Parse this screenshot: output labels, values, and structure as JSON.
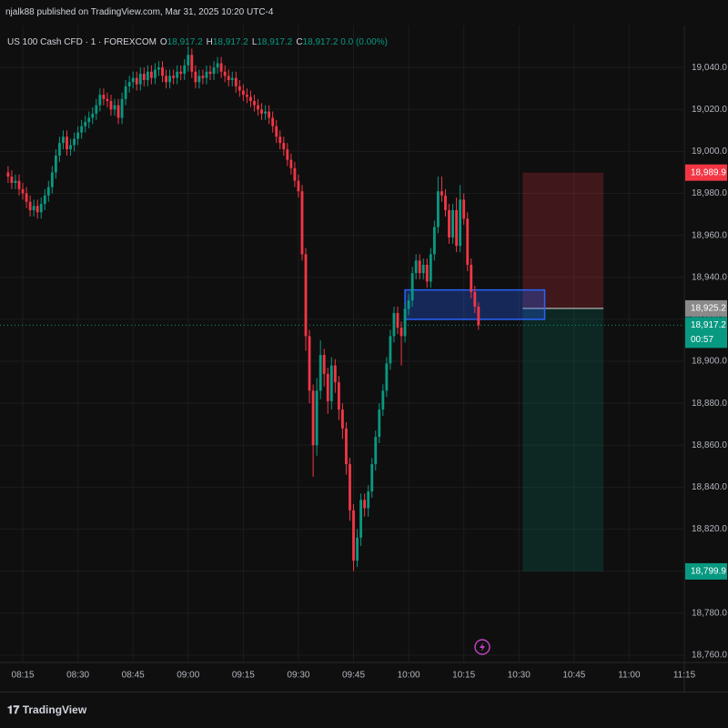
{
  "header": {
    "text": "njalk88 published on TradingView.com, Mar 31, 2025 10:20 UTC-4"
  },
  "footer": {
    "brand": "TradingView"
  },
  "chart_data": {
    "type": "candlestick",
    "symbol": "US 100 Cash CFD · 1 · FOREXCOM",
    "ohlc_legend": [
      {
        "key": "O",
        "value": "18,917.2"
      },
      {
        "key": "H",
        "value": "18,917.2"
      },
      {
        "key": "L",
        "value": "18,917.2"
      },
      {
        "key": "C",
        "value": "18,917.2"
      }
    ],
    "change": "0.0 (0.00%)",
    "up_color": "#089981",
    "down_color": "#f23645",
    "x": [
      491,
      492,
      493,
      494,
      495,
      496,
      497,
      498,
      499,
      500,
      501,
      502,
      503,
      504,
      505,
      506,
      507,
      508,
      509,
      510,
      511,
      512,
      513,
      514,
      515,
      516,
      517,
      518,
      519,
      520,
      521,
      522,
      523,
      524,
      525,
      526,
      527,
      528,
      529,
      530,
      531,
      532,
      533,
      534,
      535,
      536,
      537,
      538,
      539,
      540,
      541,
      542,
      543,
      544,
      545,
      546,
      547,
      548,
      549,
      550,
      551,
      552,
      553,
      554,
      555,
      556,
      557,
      558,
      559,
      560,
      561,
      562,
      563,
      564,
      565,
      566,
      567,
      568,
      569,
      570,
      571,
      572,
      573,
      574,
      575,
      576,
      577,
      578,
      579,
      580,
      581,
      582,
      583,
      584,
      585,
      586,
      587,
      588,
      589,
      590,
      591,
      592,
      593,
      594,
      595,
      596,
      597,
      598,
      599,
      600,
      601,
      602,
      603,
      604,
      605,
      606,
      607,
      608,
      609,
      610,
      611,
      612,
      613,
      614,
      615,
      616,
      617,
      618,
      619
    ],
    "open": [
      18990,
      18988,
      18985,
      18986,
      18982,
      18980,
      18976,
      18972,
      18974,
      18971,
      18975,
      18979,
      18983,
      18990,
      18998,
      19004,
      19007,
      19001,
      19003,
      19006,
      19009,
      19012,
      19014,
      19016,
      19018,
      19022,
      19027,
      19025,
      19024,
      19020,
      19022,
      19016,
      19025,
      19031,
      19033,
      19035,
      19032,
      19037,
      19034,
      19038,
      19035,
      19039,
      19040,
      19036,
      19033,
      19036,
      19035,
      19038,
      19037,
      19041,
      19046,
      19038,
      19033,
      19036,
      19035,
      19038,
      19037,
      19040,
      19042,
      19038,
      19036,
      19034,
      19035,
      19031,
      19029,
      19027,
      19026,
      19024,
      19022,
      19020,
      19018,
      19019,
      19016,
      19012,
      19007,
      19004,
      19001,
      18996,
      18992,
      18986,
      18981,
      18951,
      18912,
      18886,
      18860,
      18886,
      18903,
      18894,
      18881,
      18898,
      18890,
      18877,
      18868,
      18851,
      18829,
      18805,
      18816,
      18834,
      18830,
      18838,
      18851,
      18864,
      18877,
      18886,
      18899,
      18912,
      18923,
      18916,
      18912,
      18925,
      18929,
      18942,
      18948,
      18942,
      18946,
      18938,
      18951,
      18964,
      18981,
      18979,
      18972,
      18959,
      18972,
      18955,
      18977,
      18968,
      18946,
      18933,
      18926
    ],
    "high": [
      18993,
      18991,
      18989,
      18989,
      18985,
      18983,
      18979,
      18977,
      18977,
      18978,
      18982,
      18986,
      18993,
      19001,
      19007,
      19010,
      19010,
      19006,
      19009,
      19012,
      19015,
      19017,
      19019,
      19021,
      19025,
      19030,
      19030,
      19028,
      19027,
      19025,
      19025,
      19028,
      19034,
      19036,
      19038,
      19038,
      19040,
      19040,
      19041,
      19041,
      19042,
      19043,
      19043,
      19039,
      19039,
      19039,
      19041,
      19041,
      19044,
      19050,
      19049,
      19041,
      19039,
      19039,
      19041,
      19041,
      19043,
      19045,
      19045,
      19041,
      19039,
      19038,
      19038,
      19034,
      19032,
      19030,
      19029,
      19027,
      19025,
      19023,
      19022,
      19022,
      19019,
      19015,
      19010,
      19007,
      19004,
      18999,
      18995,
      18989,
      18984,
      18954,
      18915,
      18889,
      18892,
      18910,
      18906,
      18897,
      18902,
      18901,
      18893,
      18880,
      18871,
      18854,
      18832,
      18820,
      18837,
      18837,
      18841,
      18854,
      18867,
      18880,
      18889,
      18902,
      18915,
      18926,
      18926,
      18919,
      18928,
      18932,
      18945,
      18951,
      18951,
      18949,
      18949,
      18954,
      18967,
      18988,
      18988,
      18982,
      18975,
      18975,
      18978,
      18984,
      18980,
      18971,
      18949,
      18936,
      18928
    ],
    "low": [
      18985,
      18982,
      18982,
      18979,
      18977,
      18973,
      18969,
      18969,
      18968,
      18968,
      18972,
      18976,
      18980,
      18987,
      18995,
      19001,
      18998,
      18998,
      19000,
      19003,
      19006,
      19009,
      19011,
      19013,
      19015,
      19019,
      19022,
      19021,
      19017,
      19017,
      19013,
      19013,
      19022,
      19028,
      19030,
      19029,
      19029,
      19031,
      19031,
      19032,
      19032,
      19036,
      19033,
      19030,
      19030,
      19032,
      19032,
      19034,
      19034,
      19038,
      19035,
      19030,
      19030,
      19032,
      19032,
      19034,
      19034,
      19037,
      19035,
      19033,
      19031,
      19031,
      19028,
      19026,
      19024,
      19023,
      19021,
      19019,
      19017,
      19015,
      19015,
      19013,
      19009,
      19004,
      19001,
      18998,
      18993,
      18989,
      18983,
      18978,
      18948,
      18905,
      18880,
      18845,
      18855,
      18882,
      18888,
      18875,
      18877,
      18885,
      18872,
      18863,
      18846,
      18824,
      18800,
      18802,
      18812,
      18826,
      18826,
      18835,
      18848,
      18861,
      18874,
      18883,
      18896,
      18909,
      18913,
      18898,
      18909,
      18922,
      18926,
      18939,
      18939,
      18939,
      18935,
      18935,
      18948,
      18961,
      18976,
      18969,
      18956,
      18956,
      18952,
      18952,
      18965,
      18943,
      18930,
      18923,
      18915
    ],
    "close": [
      18988,
      18985,
      18986,
      18982,
      18980,
      18976,
      18972,
      18974,
      18971,
      18975,
      18979,
      18983,
      18990,
      18998,
      19004,
      19007,
      19001,
      19003,
      19006,
      19009,
      19012,
      19014,
      19016,
      19018,
      19022,
      19027,
      19025,
      19024,
      19020,
      19022,
      19016,
      19025,
      19031,
      19033,
      19035,
      19032,
      19037,
      19034,
      19038,
      19035,
      19039,
      19040,
      19036,
      19033,
      19036,
      19035,
      19038,
      19037,
      19041,
      19046,
      19038,
      19033,
      19036,
      19035,
      19038,
      19037,
      19040,
      19042,
      19038,
      19036,
      19034,
      19035,
      19031,
      19029,
      19027,
      19026,
      19024,
      19022,
      19020,
      19018,
      19019,
      19016,
      19012,
      19007,
      19004,
      19001,
      18996,
      18992,
      18986,
      18981,
      18951,
      18912,
      18886,
      18860,
      18886,
      18903,
      18894,
      18881,
      18898,
      18890,
      18877,
      18868,
      18851,
      18829,
      18805,
      18816,
      18834,
      18830,
      18838,
      18851,
      18864,
      18877,
      18886,
      18899,
      18912,
      18923,
      18916,
      18912,
      18925,
      18929,
      18942,
      18948,
      18942,
      18946,
      18938,
      18951,
      18964,
      18981,
      18979,
      18972,
      18959,
      18972,
      18955,
      18977,
      18968,
      18946,
      18933,
      18926,
      18917.2
    ],
    "xlim": [
      488.8,
      675
    ],
    "xticks": [
      {
        "value": 495,
        "label": "08:15"
      },
      {
        "value": 510,
        "label": "08:30"
      },
      {
        "value": 525,
        "label": "08:45"
      },
      {
        "value": 540,
        "label": "09:00"
      },
      {
        "value": 555,
        "label": "09:15"
      },
      {
        "value": 570,
        "label": "09:30"
      },
      {
        "value": 585,
        "label": "09:45"
      },
      {
        "value": 600,
        "label": "10:00"
      },
      {
        "value": 615,
        "label": "10:15"
      },
      {
        "value": 630,
        "label": "10:30"
      },
      {
        "value": 645,
        "label": "10:45"
      },
      {
        "value": 660,
        "label": "11:00"
      },
      {
        "value": 675,
        "label": "11:15"
      }
    ],
    "ylim": [
      18756.5,
      19060
    ],
    "yticks": [
      {
        "value": 18760,
        "label": "18,760.0"
      },
      {
        "value": 18780,
        "label": "18,780.0"
      },
      {
        "value": 18800,
        "label": "18,800.0"
      },
      {
        "value": 18820,
        "label": "18,820.0"
      },
      {
        "value": 18840,
        "label": "18,840.0"
      },
      {
        "value": 18860,
        "label": "18,860.0"
      },
      {
        "value": 18880,
        "label": "18,880.0"
      },
      {
        "value": 18900,
        "label": "18,900.0"
      },
      {
        "value": 18920,
        "label": "18,920.0"
      },
      {
        "value": 18940,
        "label": "18,940.0"
      },
      {
        "value": 18960,
        "label": "18,960.0"
      },
      {
        "value": 18980,
        "label": "18,980.0"
      },
      {
        "value": 19000,
        "label": "19,000.0"
      },
      {
        "value": 19020,
        "label": "19,020.0"
      },
      {
        "value": 19040,
        "label": "19,040.0"
      }
    ],
    "grid": true,
    "position": {
      "x": [
        631,
        653
      ],
      "stop": {
        "value": 18989.9,
        "label": "18,989.9",
        "color": "#f23645"
      },
      "entry": {
        "value": 18925.2,
        "label": "18,925.2",
        "color": "#8a8a8a"
      },
      "target": {
        "value": 18799.9,
        "label": "18,799.9",
        "color": "#089981"
      }
    },
    "zone": {
      "x": [
        599,
        637
      ],
      "ylim": [
        18920,
        18934
      ],
      "color": "#2962ff"
    },
    "last_price": {
      "value": 18917.2,
      "label": "18,917.2",
      "countdown": "00:57",
      "color": "#089981"
    }
  }
}
